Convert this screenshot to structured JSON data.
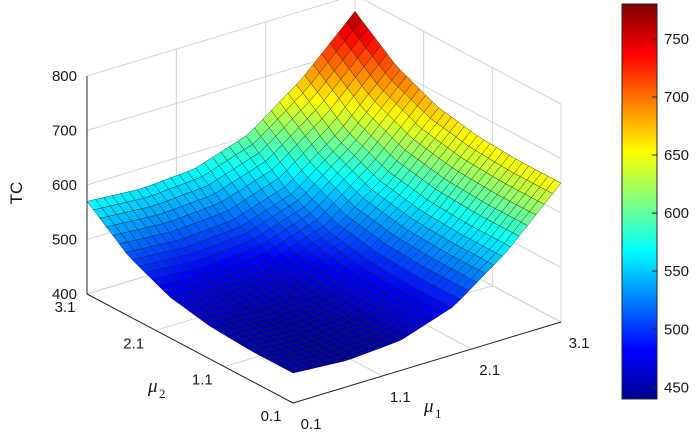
{
  "chart_data": {
    "type": "surface",
    "zlabel": "TC",
    "xlabel": {
      "symbol": "μ",
      "subscript": "1"
    },
    "ylabel": {
      "symbol": "μ",
      "subscript": "2"
    },
    "x_ticks": [
      "0.1",
      "1.1",
      "2.1",
      "3.1"
    ],
    "y_ticks": [
      "0.1",
      "1.1",
      "2.1",
      "3.1"
    ],
    "z_ticks": [
      "400",
      "500",
      "600",
      "700",
      "800"
    ],
    "xlim": [
      0.1,
      3.1
    ],
    "ylim": [
      0.1,
      3.1
    ],
    "zlim": [
      400,
      800
    ],
    "grid": true,
    "colormap": "jet",
    "colorbar": {
      "position": "right",
      "ticks": [
        "450",
        "500",
        "550",
        "600",
        "650",
        "700",
        "750"
      ],
      "range": [
        440,
        780
      ]
    },
    "surface": {
      "mu1": [
        0.1,
        0.7,
        1.3,
        1.9,
        2.5,
        3.1
      ],
      "mu2": [
        0.1,
        0.7,
        1.3,
        1.9,
        2.5,
        3.1
      ],
      "tc": [
        [
          455,
          448,
          455,
          488,
          560,
          655
        ],
        [
          455,
          448,
          455,
          488,
          560,
          655
        ],
        [
          460,
          453,
          460,
          493,
          565,
          660
        ],
        [
          475,
          468,
          475,
          508,
          580,
          675
        ],
        [
          510,
          503,
          510,
          543,
          615,
          710
        ],
        [
          570,
          563,
          570,
          603,
          675,
          770
        ]
      ],
      "note_rows_index": "tc[i][j] = TC at mu2[i], mu1[j]"
    }
  }
}
